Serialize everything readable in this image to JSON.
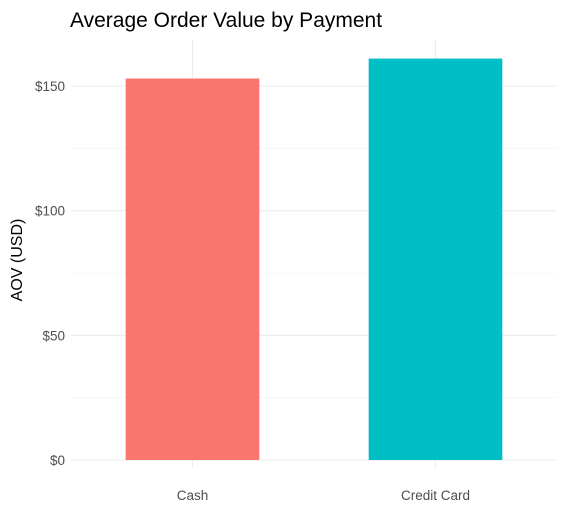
{
  "chart_data": {
    "type": "bar",
    "title": "Average Order Value by Payment",
    "xlabel": "",
    "ylabel": "AOV (USD)",
    "categories": [
      "Cash",
      "Credit Card"
    ],
    "values": [
      153,
      161
    ],
    "colors": [
      "#F8766D",
      "#00BFC4"
    ],
    "ylim": [
      0,
      170
    ],
    "yticks": [
      0,
      50,
      100,
      150
    ],
    "ytick_labels": [
      "$0",
      "$50",
      "$100",
      "$150"
    ],
    "grid": true,
    "legend": "none"
  }
}
